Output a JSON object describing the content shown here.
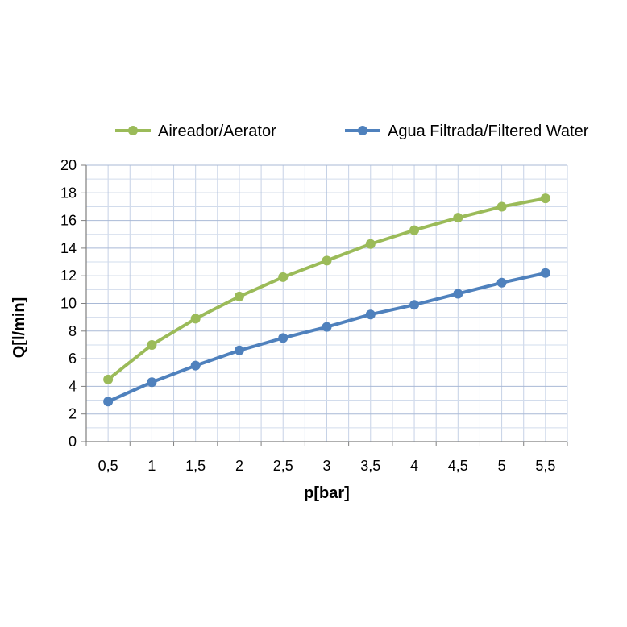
{
  "chart_data": {
    "type": "line",
    "title": "",
    "xlabel": "p[bar]",
    "ylabel": "Q[l/min]",
    "categories": [
      "0,5",
      "1",
      "1,5",
      "2",
      "2,5",
      "3",
      "3,5",
      "4",
      "4,5",
      "5",
      "5,5"
    ],
    "ylim": [
      0,
      20
    ],
    "yticks": [
      "0",
      "2",
      "4",
      "6",
      "8",
      "10",
      "12",
      "14",
      "16",
      "18",
      "20"
    ],
    "grid": true,
    "legend_position": "top",
    "series": [
      {
        "name": "Aireador/Aerator",
        "color": "#9bbb59",
        "values": [
          4.5,
          7.0,
          8.9,
          10.5,
          11.9,
          13.1,
          14.3,
          15.3,
          16.2,
          17.0,
          17.6
        ]
      },
      {
        "name": "Agua Filtrada/Filtered Water",
        "color": "#4f81bd",
        "values": [
          2.9,
          4.3,
          5.5,
          6.6,
          7.5,
          8.3,
          9.2,
          9.9,
          10.7,
          11.5,
          12.2
        ]
      }
    ]
  }
}
